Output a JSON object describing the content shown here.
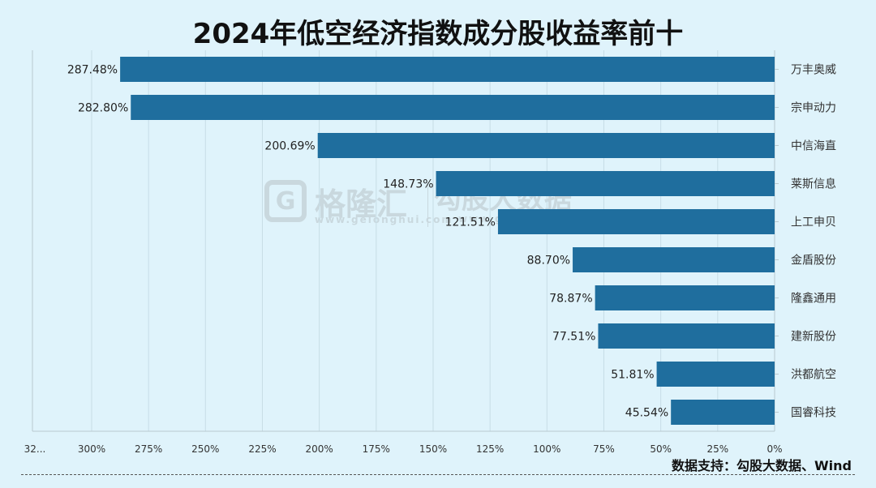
{
  "title": "2024年低空经济指数成分股收益率前十",
  "source": "数据支持：勾股大数据、Wind",
  "watermark": {
    "brand1": "格隆汇",
    "brand1_site": "www.gelonghui.com",
    "brand2": "勾股大数据",
    "brand2_site": "www.gogudata.com"
  },
  "chart_data": {
    "type": "bar",
    "orientation": "horizontal-reversed",
    "title": "2024年低空经济指数成分股收益率前十",
    "categories": [
      "万丰奥威",
      "宗申动力",
      "中信海直",
      "莱斯信息",
      "上工申贝",
      "金盾股份",
      "隆鑫通用",
      "建新股份",
      "洪都航空",
      "国睿科技"
    ],
    "values": [
      287.48,
      282.8,
      200.69,
      148.73,
      121.51,
      88.7,
      78.87,
      77.51,
      51.81,
      45.54
    ],
    "value_labels": [
      "287.48%",
      "282.80%",
      "200.69%",
      "148.73%",
      "121.51%",
      "88.70%",
      "78.87%",
      "77.51%",
      "51.81%",
      "45.54%"
    ],
    "xlim": [
      0,
      326
    ],
    "xticks": [
      0,
      25,
      50,
      75,
      100,
      125,
      150,
      175,
      200,
      225,
      250,
      275,
      300
    ],
    "xtick_labels": [
      "0%",
      "25%",
      "50%",
      "75%",
      "100%",
      "125%",
      "150%",
      "175%",
      "200%",
      "225%",
      "250%",
      "275%",
      "300%"
    ],
    "truncated_tick_label": "32...",
    "bar_color": "#1f6e9e",
    "grid_color": "#c7dde6",
    "grid": true
  }
}
